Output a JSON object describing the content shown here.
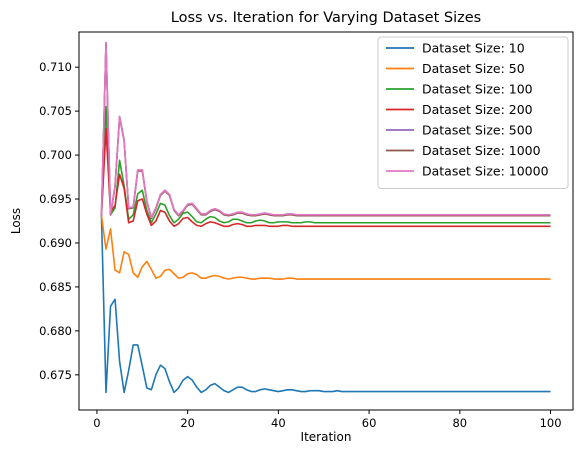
{
  "chart_data": {
    "type": "line",
    "title": "Loss vs. Iteration for Varying Dataset Sizes",
    "xlabel": "Iteration",
    "ylabel": "Loss",
    "xlim": [
      -3.95,
      104.95
    ],
    "ylim": [
      0.671,
      0.714
    ],
    "xticks": [
      0,
      20,
      40,
      60,
      80,
      100
    ],
    "xtick_labels": [
      "0",
      "20",
      "40",
      "60",
      "80",
      "100"
    ],
    "yticks": [
      0.675,
      0.68,
      0.685,
      0.69,
      0.695,
      0.7,
      0.705,
      0.71
    ],
    "ytick_labels": [
      "0.675",
      "0.680",
      "0.685",
      "0.690",
      "0.695",
      "0.700",
      "0.705",
      "0.710"
    ],
    "grid": false,
    "legend_position": "top-right",
    "x": [
      1,
      2,
      3,
      4,
      5,
      6,
      7,
      8,
      9,
      10,
      11,
      12,
      13,
      14,
      15,
      16,
      17,
      18,
      19,
      20,
      21,
      22,
      23,
      24,
      25,
      26,
      27,
      28,
      29,
      30,
      31,
      32,
      33,
      34,
      35,
      36,
      37,
      38,
      39,
      40,
      41,
      42,
      43,
      44,
      45,
      46,
      47,
      48,
      49,
      50,
      51,
      52,
      53,
      54,
      55,
      56,
      57,
      58,
      59,
      60,
      61,
      62,
      63,
      64,
      65,
      66,
      67,
      68,
      69,
      70,
      71,
      72,
      73,
      74,
      75,
      76,
      77,
      78,
      79,
      80,
      81,
      82,
      83,
      84,
      85,
      86,
      87,
      88,
      89,
      90,
      91,
      92,
      93,
      94,
      95,
      96,
      97,
      98,
      99,
      100
    ],
    "series": [
      {
        "name": "Dataset Size: 10",
        "color": "#1f77b4",
        "values": [
          0.6931,
          0.673,
          0.6828,
          0.6836,
          0.6765,
          0.673,
          0.6755,
          0.6784,
          0.6784,
          0.676,
          0.6735,
          0.6733,
          0.675,
          0.6761,
          0.6757,
          0.6742,
          0.673,
          0.6735,
          0.6744,
          0.6748,
          0.6744,
          0.6736,
          0.673,
          0.6733,
          0.6738,
          0.674,
          0.6736,
          0.6732,
          0.673,
          0.6733,
          0.6736,
          0.6736,
          0.6733,
          0.6731,
          0.6731,
          0.6733,
          0.6734,
          0.6733,
          0.6732,
          0.6731,
          0.6732,
          0.6733,
          0.6733,
          0.6732,
          0.6731,
          0.6731,
          0.6732,
          0.6732,
          0.6732,
          0.6731,
          0.6731,
          0.6731,
          0.6732,
          0.6731,
          0.6731,
          0.6731,
          0.6731,
          0.6731,
          0.6731,
          0.6731,
          0.6731,
          0.6731,
          0.6731,
          0.6731,
          0.6731,
          0.6731,
          0.6731,
          0.6731,
          0.6731,
          0.6731,
          0.6731,
          0.6731,
          0.6731,
          0.6731,
          0.6731,
          0.6731,
          0.6731,
          0.6731,
          0.6731,
          0.6731,
          0.6731,
          0.6731,
          0.6731,
          0.6731,
          0.6731,
          0.6731,
          0.6731,
          0.6731,
          0.6731,
          0.6731,
          0.6731,
          0.6731,
          0.6731,
          0.6731,
          0.6731,
          0.6731,
          0.6731,
          0.6731,
          0.6731,
          0.6731
        ]
      },
      {
        "name": "Dataset Size: 50",
        "color": "#ff7f0e",
        "values": [
          0.6931,
          0.6893,
          0.6916,
          0.6869,
          0.6866,
          0.689,
          0.6887,
          0.6866,
          0.6861,
          0.6873,
          0.6879,
          0.687,
          0.686,
          0.6862,
          0.6869,
          0.687,
          0.6865,
          0.686,
          0.6861,
          0.6865,
          0.6866,
          0.6864,
          0.686,
          0.686,
          0.6862,
          0.6863,
          0.6862,
          0.686,
          0.6859,
          0.686,
          0.6861,
          0.6861,
          0.686,
          0.6859,
          0.6859,
          0.686,
          0.686,
          0.686,
          0.6859,
          0.6859,
          0.6859,
          0.686,
          0.686,
          0.6859,
          0.6859,
          0.6859,
          0.6859,
          0.6859,
          0.6859,
          0.6859,
          0.6859,
          0.6859,
          0.6859,
          0.6859,
          0.6859,
          0.6859,
          0.6859,
          0.6859,
          0.6859,
          0.6859,
          0.6859,
          0.6859,
          0.6859,
          0.6859,
          0.6859,
          0.6859,
          0.6859,
          0.6859,
          0.6859,
          0.6859,
          0.6859,
          0.6859,
          0.6859,
          0.6859,
          0.6859,
          0.6859,
          0.6859,
          0.6859,
          0.6859,
          0.6859,
          0.6859,
          0.6859,
          0.6859,
          0.6859,
          0.6859,
          0.6859,
          0.6859,
          0.6859,
          0.6859,
          0.6859,
          0.6859,
          0.6859,
          0.6859,
          0.6859,
          0.6859,
          0.6859,
          0.6859,
          0.6859,
          0.6859,
          0.6859
        ]
      },
      {
        "name": "Dataset Size: 100",
        "color": "#2ca02c",
        "values": [
          0.6931,
          0.7055,
          0.6932,
          0.694,
          0.6994,
          0.6965,
          0.6927,
          0.6932,
          0.6956,
          0.696,
          0.6937,
          0.6923,
          0.6933,
          0.6945,
          0.6943,
          0.6931,
          0.6923,
          0.6927,
          0.6934,
          0.6935,
          0.693,
          0.6924,
          0.6923,
          0.6927,
          0.693,
          0.6929,
          0.6925,
          0.6923,
          0.6924,
          0.6927,
          0.6927,
          0.6925,
          0.6923,
          0.6923,
          0.6925,
          0.6926,
          0.6925,
          0.6923,
          0.6923,
          0.6924,
          0.6924,
          0.6924,
          0.6923,
          0.6923,
          0.6923,
          0.6924,
          0.6924,
          0.6923,
          0.6923,
          0.6923,
          0.6923,
          0.6923,
          0.6923,
          0.6923,
          0.6923,
          0.6923,
          0.6923,
          0.6923,
          0.6923,
          0.6923,
          0.6923,
          0.6923,
          0.6923,
          0.6923,
          0.6923,
          0.6923,
          0.6923,
          0.6923,
          0.6923,
          0.6923,
          0.6923,
          0.6923,
          0.6923,
          0.6923,
          0.6923,
          0.6923,
          0.6923,
          0.6923,
          0.6923,
          0.6923,
          0.6923,
          0.6923,
          0.6923,
          0.6923,
          0.6923,
          0.6923,
          0.6923,
          0.6923,
          0.6923,
          0.6923,
          0.6923,
          0.6923,
          0.6923,
          0.6923,
          0.6923,
          0.6923,
          0.6923,
          0.6923,
          0.6923,
          0.6923
        ]
      },
      {
        "name": "Dataset Size: 200",
        "color": "#d62728",
        "values": [
          0.6931,
          0.703,
          0.6935,
          0.6943,
          0.6978,
          0.6962,
          0.6923,
          0.6925,
          0.6948,
          0.695,
          0.6933,
          0.692,
          0.6925,
          0.6937,
          0.6935,
          0.6925,
          0.6919,
          0.6922,
          0.6928,
          0.6929,
          0.6924,
          0.692,
          0.6919,
          0.6922,
          0.6924,
          0.6923,
          0.6921,
          0.6919,
          0.6919,
          0.6921,
          0.6922,
          0.6921,
          0.6919,
          0.6919,
          0.692,
          0.692,
          0.692,
          0.6919,
          0.6919,
          0.6919,
          0.692,
          0.692,
          0.6919,
          0.6919,
          0.6919,
          0.6919,
          0.6919,
          0.6919,
          0.6919,
          0.6919,
          0.6919,
          0.6919,
          0.6919,
          0.6919,
          0.6919,
          0.6919,
          0.6919,
          0.6919,
          0.6919,
          0.6919,
          0.6919,
          0.6919,
          0.6919,
          0.6919,
          0.6919,
          0.6919,
          0.6919,
          0.6919,
          0.6919,
          0.6919,
          0.6919,
          0.6919,
          0.6919,
          0.6919,
          0.6919,
          0.6919,
          0.6919,
          0.6919,
          0.6919,
          0.6919,
          0.6919,
          0.6919,
          0.6919,
          0.6919,
          0.6919,
          0.6919,
          0.6919,
          0.6919,
          0.6919,
          0.6919,
          0.6919,
          0.6919,
          0.6919,
          0.6919,
          0.6919,
          0.6919,
          0.6919,
          0.6919,
          0.6919,
          0.6919
        ]
      },
      {
        "name": "Dataset Size: 500",
        "color": "#9467bd",
        "values": [
          0.6931,
          0.7128,
          0.6933,
          0.6965,
          0.7044,
          0.7017,
          0.694,
          0.6941,
          0.6983,
          0.6983,
          0.6948,
          0.6929,
          0.694,
          0.6955,
          0.696,
          0.6955,
          0.6938,
          0.6932,
          0.6937,
          0.6944,
          0.6945,
          0.6939,
          0.6933,
          0.6933,
          0.6937,
          0.6939,
          0.6937,
          0.6933,
          0.6932,
          0.6933,
          0.6935,
          0.6935,
          0.6933,
          0.6932,
          0.6932,
          0.6933,
          0.6934,
          0.6933,
          0.6932,
          0.6932,
          0.6932,
          0.6933,
          0.6933,
          0.6932,
          0.6932,
          0.6932,
          0.6932,
          0.6932,
          0.6932,
          0.6932,
          0.6932,
          0.6932,
          0.6932,
          0.6932,
          0.6932,
          0.6932,
          0.6932,
          0.6932,
          0.6932,
          0.6932,
          0.6932,
          0.6932,
          0.6932,
          0.6932,
          0.6932,
          0.6932,
          0.6932,
          0.6932,
          0.6932,
          0.6932,
          0.6932,
          0.6932,
          0.6932,
          0.6932,
          0.6932,
          0.6932,
          0.6932,
          0.6932,
          0.6932,
          0.6932,
          0.6932,
          0.6932,
          0.6932,
          0.6932,
          0.6932,
          0.6932,
          0.6932,
          0.6932,
          0.6932,
          0.6932,
          0.6932,
          0.6932,
          0.6932,
          0.6932,
          0.6932,
          0.6932,
          0.6932,
          0.6932,
          0.6932,
          0.6932
        ]
      },
      {
        "name": "Dataset Size: 1000",
        "color": "#8c564b",
        "values": [
          0.6931,
          0.7126,
          0.6932,
          0.6964,
          0.7043,
          0.7016,
          0.6939,
          0.694,
          0.6982,
          0.6982,
          0.6947,
          0.6928,
          0.6939,
          0.6954,
          0.6959,
          0.6954,
          0.6937,
          0.6931,
          0.6936,
          0.6943,
          0.6944,
          0.6938,
          0.6932,
          0.6932,
          0.6936,
          0.6938,
          0.6936,
          0.6932,
          0.6931,
          0.6932,
          0.6934,
          0.6934,
          0.6932,
          0.6931,
          0.6931,
          0.6932,
          0.6933,
          0.6932,
          0.6931,
          0.6931,
          0.6931,
          0.6932,
          0.6932,
          0.6931,
          0.6931,
          0.6931,
          0.6931,
          0.6931,
          0.6931,
          0.6931,
          0.6931,
          0.6931,
          0.6931,
          0.6931,
          0.6931,
          0.6931,
          0.6931,
          0.6931,
          0.6931,
          0.6931,
          0.6931,
          0.6931,
          0.6931,
          0.6931,
          0.6931,
          0.6931,
          0.6931,
          0.6931,
          0.6931,
          0.6931,
          0.6931,
          0.6931,
          0.6931,
          0.6931,
          0.6931,
          0.6931,
          0.6931,
          0.6931,
          0.6931,
          0.6931,
          0.6931,
          0.6931,
          0.6931,
          0.6931,
          0.6931,
          0.6931,
          0.6931,
          0.6931,
          0.6931,
          0.6931,
          0.6931,
          0.6931,
          0.6931,
          0.6931,
          0.6931,
          0.6931,
          0.6931,
          0.6931,
          0.6931,
          0.6931
        ]
      },
      {
        "name": "Dataset Size: 10000",
        "color": "#e377c2",
        "values": [
          0.6931,
          0.7127,
          0.6933,
          0.6965,
          0.7044,
          0.7017,
          0.694,
          0.6941,
          0.6983,
          0.6983,
          0.6948,
          0.6929,
          0.694,
          0.6955,
          0.696,
          0.6955,
          0.6938,
          0.6932,
          0.6937,
          0.6944,
          0.6945,
          0.6939,
          0.6933,
          0.6933,
          0.6937,
          0.6939,
          0.6937,
          0.6933,
          0.6932,
          0.6933,
          0.6935,
          0.6935,
          0.6933,
          0.6932,
          0.6932,
          0.6933,
          0.6934,
          0.6933,
          0.6932,
          0.6932,
          0.6932,
          0.6933,
          0.6933,
          0.6932,
          0.6932,
          0.6932,
          0.6932,
          0.6932,
          0.6932,
          0.6932,
          0.6932,
          0.6932,
          0.6932,
          0.6932,
          0.6932,
          0.6932,
          0.6932,
          0.6932,
          0.6932,
          0.6932,
          0.6932,
          0.6932,
          0.6932,
          0.6932,
          0.6932,
          0.6932,
          0.6932,
          0.6932,
          0.6932,
          0.6932,
          0.6932,
          0.6932,
          0.6932,
          0.6932,
          0.6932,
          0.6932,
          0.6932,
          0.6932,
          0.6932,
          0.6932,
          0.6932,
          0.6932,
          0.6932,
          0.6932,
          0.6932,
          0.6932,
          0.6932,
          0.6932,
          0.6932,
          0.6932,
          0.6932,
          0.6932,
          0.6932,
          0.6932,
          0.6932,
          0.6932,
          0.6932,
          0.6932,
          0.6932,
          0.6932
        ]
      }
    ]
  }
}
